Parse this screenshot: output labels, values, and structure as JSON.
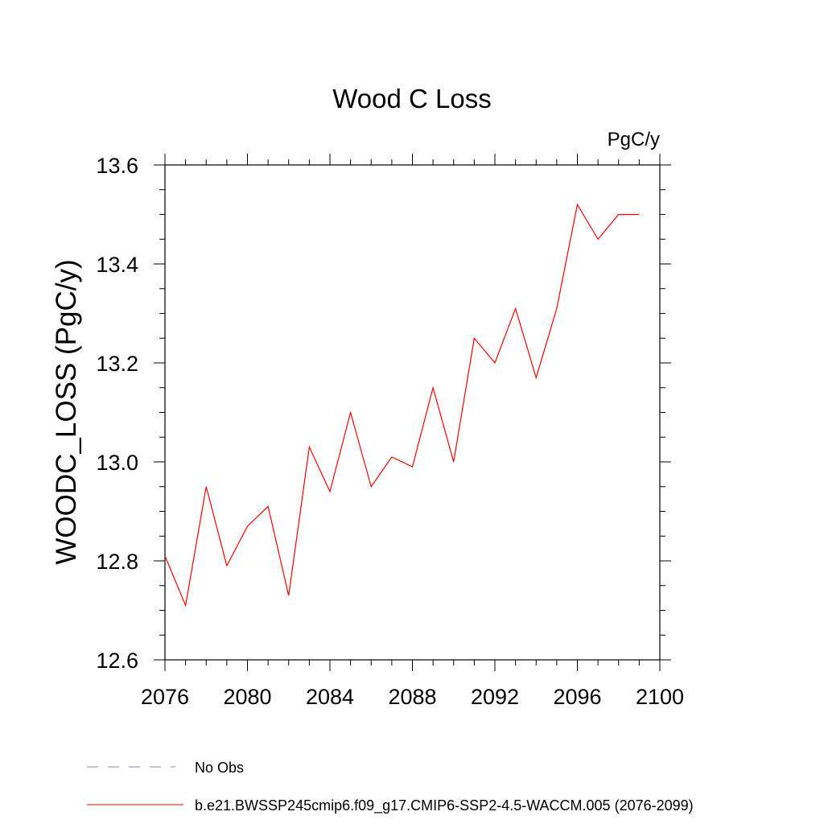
{
  "chart_data": {
    "type": "line",
    "title": "Wood C Loss",
    "units_label": "PgC/y",
    "ylabel": "WOODC_LOSS  (PgC/y)",
    "xlabel": "",
    "xlim": [
      2076,
      2100
    ],
    "ylim": [
      12.6,
      13.6
    ],
    "x_ticks": [
      "2076",
      "2080",
      "2084",
      "2088",
      "2092",
      "2096",
      "2100"
    ],
    "y_ticks": [
      "12.6",
      "12.8",
      "13.0",
      "13.2",
      "13.4",
      "13.6"
    ],
    "grid": false,
    "legend_position": "bottom-left",
    "series": [
      {
        "name": "No Obs",
        "style": "dashed",
        "color": "#8080c0",
        "x": [],
        "values": []
      },
      {
        "name": "b.e21.BWSSP245cmip6.f09_g17.CMIP6-SSP2-4.5-WACCM.005 (2076-2099)",
        "style": "solid",
        "color": "#ff0000",
        "x": [
          2076,
          2077,
          2078,
          2079,
          2080,
          2081,
          2082,
          2083,
          2084,
          2085,
          2086,
          2087,
          2088,
          2089,
          2090,
          2091,
          2092,
          2093,
          2094,
          2095,
          2096,
          2097,
          2098,
          2099
        ],
        "values": [
          12.81,
          12.71,
          12.95,
          12.79,
          12.87,
          12.91,
          12.73,
          13.03,
          12.94,
          13.1,
          12.95,
          13.01,
          12.99,
          13.15,
          13.0,
          13.25,
          13.2,
          13.31,
          13.17,
          13.31,
          13.52,
          13.45,
          13.5,
          13.5
        ]
      }
    ]
  }
}
